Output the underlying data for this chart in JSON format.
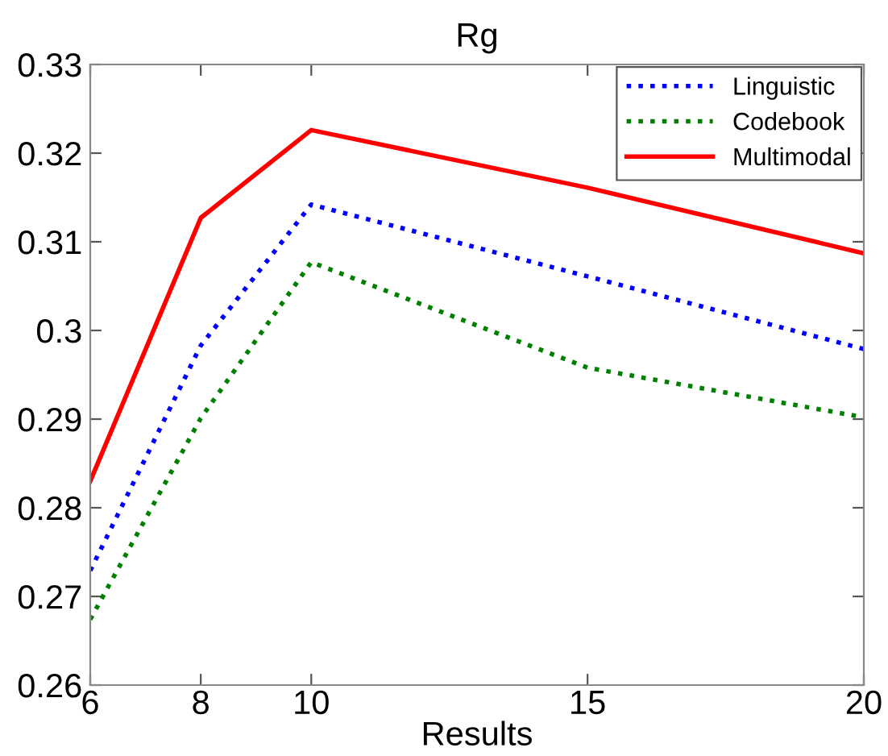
{
  "chart_data": {
    "type": "line",
    "title": "Rg",
    "xlabel": "Results",
    "x": [
      6,
      8,
      10,
      15,
      20
    ],
    "series": [
      {
        "name": "Linguistic",
        "color": "#0000ff",
        "line_style": "dotted",
        "values": [
          0.2729,
          0.2983,
          0.3142,
          0.3061,
          0.2979
        ]
      },
      {
        "name": "Codebook",
        "color": "#008000",
        "line_style": "dotted",
        "values": [
          0.2674,
          0.2901,
          0.3077,
          0.2958,
          0.2902
        ]
      },
      {
        "name": "Multimodal",
        "color": "#ff0000",
        "line_style": "solid",
        "values": [
          0.283,
          0.3127,
          0.3226,
          0.3161,
          0.3087
        ]
      }
    ],
    "xlim": [
      6,
      20
    ],
    "xticks": [
      6,
      8,
      10,
      15,
      20
    ],
    "ylim": [
      0.26,
      0.33
    ],
    "yticks": [
      {
        "value": 0.26,
        "label": "0.26"
      },
      {
        "value": 0.27,
        "label": "0.27"
      },
      {
        "value": 0.28,
        "label": "0.28"
      },
      {
        "value": 0.29,
        "label": "0.29"
      },
      {
        "value": 0.3,
        "label": "0.3"
      },
      {
        "value": 0.31,
        "label": "0.31"
      },
      {
        "value": 0.32,
        "label": "0.32"
      },
      {
        "value": 0.33,
        "label": "0.33"
      }
    ],
    "legend": "top right",
    "grid": false,
    "marker": "none"
  }
}
